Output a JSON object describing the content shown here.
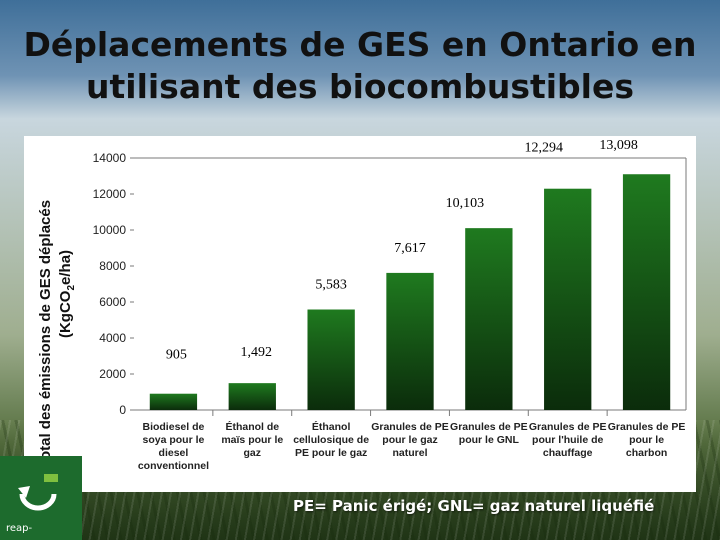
{
  "slide": {
    "title_line1": "Déplacements de GES en Ontario en",
    "title_line2": "utilisant des biocombustibles",
    "footnote": "PE= Panic érigé; GNL= gaz naturel liquéfié",
    "logo_text": "reap-"
  },
  "colors": {
    "bar_fill_top": "#1f7a1f",
    "bar_fill_bottom": "#0b2c0b",
    "frame": "#7a7a7a"
  },
  "chart_data": {
    "type": "bar",
    "ylabel_line1": "Total des émissions de GES déplacés",
    "ylabel_line2_parts": [
      "(KgCO",
      "2",
      "e/ha)"
    ],
    "ylim": [
      0,
      14000
    ],
    "yticks": [
      "0",
      "2000",
      "4000",
      "6000",
      "8000",
      "10000",
      "12000",
      "14000"
    ],
    "categories": [
      [
        "Biodiesel de",
        "soya pour le",
        "diesel",
        "conventionnel"
      ],
      [
        "Éthanol de",
        "maïs pour le",
        "gaz"
      ],
      [
        "Éthanol",
        "cellulosique de",
        "PE pour le gaz"
      ],
      [
        "Granules de PE",
        "pour le gaz",
        "naturel"
      ],
      [
        "Granules de PE",
        "pour le GNL"
      ],
      [
        "Granules de PE",
        "pour l'huile de",
        "chauffage"
      ],
      [
        "Granules de PE",
        "pour le",
        "charbon"
      ]
    ],
    "values": [
      905,
      1492,
      5583,
      7617,
      10103,
      12294,
      13098
    ],
    "data_labels": [
      "905",
      "1,492",
      "5,583",
      "7,617",
      "10,103",
      "12,294",
      "13,098"
    ],
    "grid": false,
    "legend": "none"
  }
}
